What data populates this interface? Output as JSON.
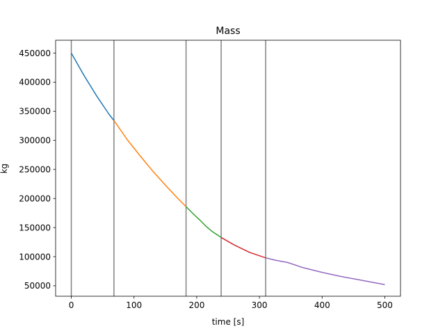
{
  "chart_data": {
    "type": "line",
    "title": "Mass",
    "xlabel": "time [s]",
    "ylabel": "kg",
    "xlim": [
      -25,
      525
    ],
    "ylim": [
      32000,
      472000
    ],
    "xticks": [
      0,
      100,
      200,
      300,
      400,
      500
    ],
    "yticks": [
      50000,
      100000,
      150000,
      200000,
      250000,
      300000,
      350000,
      400000,
      450000
    ],
    "grid": false,
    "vertical_lines": [
      0,
      68,
      183,
      239,
      310
    ],
    "series": [
      {
        "color": "#1f77b4",
        "x": [
          0,
          20,
          40,
          60,
          68
        ],
        "y": [
          450000,
          412000,
          377000,
          345000,
          334000
        ]
      },
      {
        "color": "#ff7f0e",
        "x": [
          68,
          90,
          110,
          130,
          150,
          170,
          183
        ],
        "y": [
          334000,
          300000,
          273000,
          247000,
          223000,
          200000,
          186000
        ]
      },
      {
        "color": "#2ca02c",
        "x": [
          183,
          195,
          205,
          215,
          225,
          239
        ],
        "y": [
          186000,
          173000,
          163000,
          152000,
          143000,
          133000
        ]
      },
      {
        "color": "#d62728",
        "x": [
          239,
          260,
          285,
          310
        ],
        "y": [
          133000,
          120000,
          107000,
          98000
        ]
      },
      {
        "color": "#9467bd",
        "x": [
          310,
          325,
          345,
          370,
          400,
          430,
          460,
          480,
          500
        ],
        "y": [
          98000,
          94000,
          90000,
          81000,
          73000,
          66000,
          60000,
          56000,
          52000
        ]
      }
    ]
  }
}
